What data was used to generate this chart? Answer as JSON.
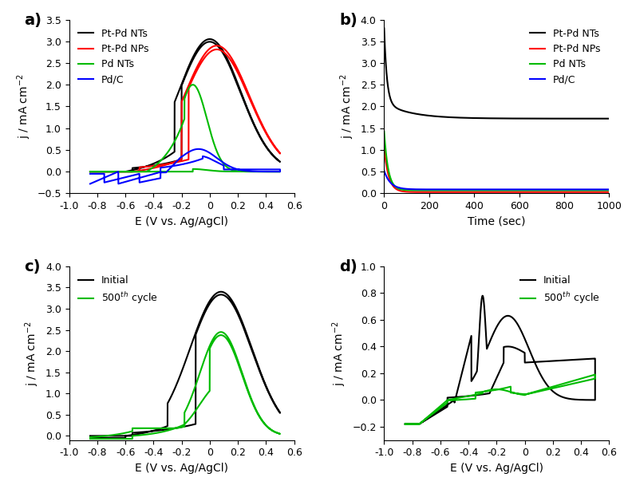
{
  "fig_width": 7.87,
  "fig_height": 6.13,
  "colors": {
    "black": "#000000",
    "red": "#FF0000",
    "green": "#00BB00",
    "blue": "#0000FF"
  },
  "legend_a": [
    "Pt-Pd NTs",
    "Pt-Pd NPs",
    "Pd NTs",
    "Pd/C"
  ],
  "legend_b": [
    "Pt-Pd NTs",
    "Pt-Pd NPs",
    "Pd NTs",
    "Pd/C"
  ],
  "legend_c": [
    "Initial",
    "500$^{th}$ cycle"
  ],
  "legend_d": [
    "Initial",
    "500$^{th}$ cycle"
  ],
  "axis_a": {
    "xlim": [
      -1.0,
      0.6
    ],
    "ylim": [
      -0.5,
      3.5
    ],
    "xlabel": "E (V vs. Ag/AgCl)",
    "ylabel": "j / mA cm$^{-2}$"
  },
  "axis_b": {
    "xlim": [
      0,
      1000
    ],
    "ylim": [
      0,
      4.0
    ],
    "xlabel": "Time (sec)",
    "ylabel": "j / mA cm$^{-2}$"
  },
  "axis_c": {
    "xlim": [
      -1.0,
      0.6
    ],
    "ylim": [
      -0.1,
      4.0
    ],
    "xlabel": "E (V vs. Ag/AgCl)",
    "ylabel": "j / mA cm$^{-2}$"
  },
  "axis_d": {
    "xlim": [
      -1.0,
      0.6
    ],
    "ylim": [
      -0.3,
      1.0
    ],
    "xlabel": "E (V vs. Ag/AgCl)",
    "ylabel": "j / mA cm$^{-2}$"
  },
  "tick_fontsize": 9,
  "label_fontsize": 10,
  "legend_fontsize": 9,
  "line_width": 1.5
}
